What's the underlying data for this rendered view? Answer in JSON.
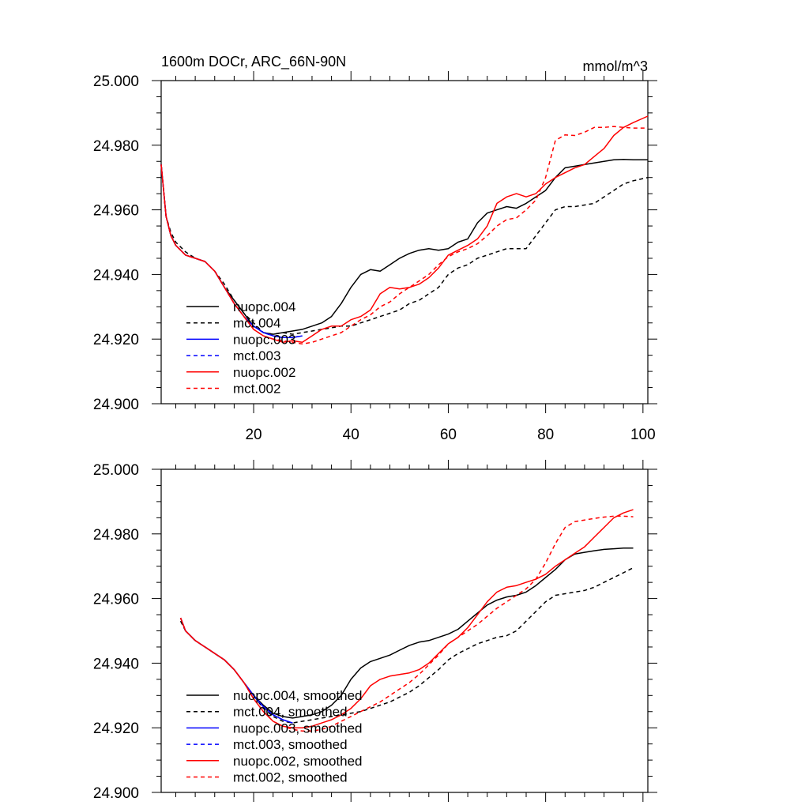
{
  "chart_data": [
    {
      "type": "line",
      "title": "1600m DOCr, ARC_66N-90N",
      "units": "mmol/m^3",
      "xlim": [
        1,
        101
      ],
      "ylim": [
        24.9,
        25.0
      ],
      "x_ticks": [
        20,
        40,
        60,
        80,
        100
      ],
      "y_ticks": [
        24.9,
        24.92,
        24.94,
        24.96,
        24.98,
        25.0
      ],
      "y_tick_labels": [
        "24.900",
        "24.920",
        "24.940",
        "24.960",
        "24.980",
        "25.000"
      ],
      "x_tick_labels": [
        "20",
        "40",
        "60",
        "80",
        "100"
      ],
      "legend_position": "lower-left",
      "series": [
        {
          "name": "nuopc.004",
          "color": "#000000",
          "dash": "solid",
          "x": [
            1,
            2,
            3,
            4,
            6,
            8,
            10,
            12,
            14,
            16,
            18,
            20,
            22,
            24,
            26,
            28,
            30,
            32,
            34,
            36,
            38,
            40,
            42,
            44,
            46,
            48,
            50,
            52,
            54,
            56,
            58,
            60,
            62,
            64,
            66,
            68,
            70,
            72,
            74,
            76,
            78,
            80,
            82,
            84,
            86,
            88,
            90,
            92,
            94,
            96,
            98,
            101
          ],
          "y": [
            24.974,
            24.958,
            24.952,
            24.949,
            24.946,
            24.945,
            24.944,
            24.941,
            24.936,
            24.932,
            24.928,
            24.924,
            24.922,
            24.9215,
            24.922,
            24.9225,
            24.923,
            24.924,
            24.925,
            24.927,
            24.931,
            24.936,
            24.94,
            24.9415,
            24.941,
            24.943,
            24.945,
            24.9465,
            24.9475,
            24.948,
            24.9475,
            24.948,
            24.95,
            24.951,
            24.956,
            24.959,
            24.96,
            24.961,
            24.9605,
            24.962,
            24.964,
            24.966,
            24.97,
            24.973,
            24.9735,
            24.974,
            24.9745,
            24.975,
            24.9755,
            24.9756,
            24.9755,
            24.9755
          ]
        },
        {
          "name": "mct.004",
          "color": "#000000",
          "dash": "dashed",
          "x": [
            1,
            2,
            3,
            4,
            6,
            8,
            10,
            12,
            14,
            16,
            18,
            20,
            22,
            24,
            26,
            28,
            30,
            32,
            34,
            36,
            38,
            40,
            42,
            44,
            46,
            48,
            50,
            52,
            54,
            56,
            58,
            60,
            62,
            64,
            66,
            68,
            70,
            72,
            74,
            76,
            78,
            80,
            82,
            84,
            86,
            88,
            90,
            92,
            94,
            96,
            98,
            101
          ],
          "y": [
            24.974,
            24.958,
            24.953,
            24.95,
            24.947,
            24.945,
            24.944,
            24.941,
            24.937,
            24.932,
            24.928,
            24.925,
            24.922,
            24.9215,
            24.922,
            24.9215,
            24.922,
            24.9225,
            24.923,
            24.9235,
            24.924,
            24.924,
            24.925,
            24.926,
            24.927,
            24.928,
            24.929,
            24.931,
            24.932,
            24.934,
            24.936,
            24.94,
            24.942,
            24.943,
            24.945,
            24.946,
            24.947,
            24.948,
            24.948,
            24.948,
            24.952,
            24.956,
            24.96,
            24.961,
            24.961,
            24.9615,
            24.962,
            24.964,
            24.966,
            24.968,
            24.969,
            24.97
          ]
        },
        {
          "name": "nuopc.003",
          "color": "#0000ff",
          "dash": "solid",
          "x": [
            1,
            2,
            3,
            4,
            6,
            8,
            10,
            12,
            14,
            16,
            18,
            20,
            22,
            24,
            26,
            28,
            30
          ],
          "y": [
            24.974,
            24.958,
            24.952,
            24.949,
            24.946,
            24.945,
            24.944,
            24.941,
            24.936,
            24.931,
            24.927,
            24.924,
            24.922,
            24.921,
            24.9205,
            24.9205,
            24.921
          ]
        },
        {
          "name": "mct.003",
          "color": "#0000ff",
          "dash": "dashed",
          "x": [
            1,
            2,
            3,
            4,
            6,
            8,
            10,
            12,
            14,
            16,
            18,
            20,
            22,
            24,
            26,
            28,
            30
          ],
          "y": [
            24.974,
            24.958,
            24.952,
            24.949,
            24.946,
            24.945,
            24.944,
            24.941,
            24.936,
            24.931,
            24.927,
            24.924,
            24.922,
            24.921,
            24.9205,
            24.9205,
            24.921
          ]
        },
        {
          "name": "nuopc.002",
          "color": "#ff0000",
          "dash": "solid",
          "x": [
            1,
            2,
            3,
            4,
            6,
            8,
            10,
            12,
            14,
            16,
            18,
            20,
            22,
            24,
            26,
            28,
            30,
            32,
            34,
            36,
            38,
            40,
            42,
            44,
            46,
            48,
            50,
            52,
            54,
            56,
            58,
            60,
            62,
            64,
            66,
            68,
            70,
            72,
            74,
            76,
            78,
            80,
            82,
            84,
            86,
            88,
            90,
            92,
            94,
            96,
            98,
            101
          ],
          "y": [
            24.974,
            24.958,
            24.952,
            24.949,
            24.946,
            24.945,
            24.944,
            24.941,
            24.936,
            24.931,
            24.927,
            24.923,
            24.921,
            24.92,
            24.919,
            24.9195,
            24.919,
            24.921,
            24.923,
            24.924,
            24.924,
            24.926,
            24.927,
            24.929,
            24.934,
            24.936,
            24.9355,
            24.936,
            24.937,
            24.939,
            24.942,
            24.946,
            24.9475,
            24.949,
            24.951,
            24.955,
            24.962,
            24.964,
            24.965,
            24.964,
            24.965,
            24.968,
            24.97,
            24.9715,
            24.973,
            24.974,
            24.9765,
            24.979,
            24.983,
            24.9855,
            24.987,
            24.989
          ]
        },
        {
          "name": "mct.002",
          "color": "#ff0000",
          "dash": "dashed",
          "x": [
            1,
            2,
            3,
            4,
            6,
            8,
            10,
            12,
            14,
            16,
            18,
            20,
            22,
            24,
            26,
            28,
            30,
            32,
            34,
            36,
            38,
            40,
            42,
            44,
            46,
            48,
            50,
            52,
            54,
            56,
            58,
            60,
            62,
            64,
            66,
            68,
            70,
            72,
            74,
            76,
            78,
            80,
            82,
            84,
            86,
            88,
            90,
            92,
            94,
            96,
            98,
            101
          ],
          "y": [
            24.974,
            24.958,
            24.952,
            24.949,
            24.946,
            24.945,
            24.944,
            24.941,
            24.936,
            24.931,
            24.927,
            24.923,
            24.921,
            24.92,
            24.9195,
            24.919,
            24.9185,
            24.919,
            24.92,
            24.921,
            24.922,
            24.924,
            24.926,
            24.9275,
            24.93,
            24.9315,
            24.934,
            24.936,
            24.938,
            24.94,
            24.943,
            24.9455,
            24.947,
            24.948,
            24.9495,
            24.952,
            24.955,
            24.957,
            24.9575,
            24.96,
            24.963,
            24.97,
            24.9815,
            24.9832,
            24.983,
            24.984,
            24.9855,
            24.9855,
            24.9858,
            24.9855,
            24.9853,
            24.9853
          ]
        }
      ]
    },
    {
      "type": "line",
      "xlim": [
        1,
        101
      ],
      "ylim": [
        24.9,
        25.0
      ],
      "x_ticks": [
        20,
        40,
        60,
        80,
        100
      ],
      "y_ticks": [
        24.9,
        24.92,
        24.94,
        24.96,
        24.98,
        25.0
      ],
      "y_tick_labels": [
        "24.900",
        "24.920",
        "24.940",
        "24.960",
        "24.980",
        "25.000"
      ],
      "legend_position": "lower-left",
      "series": [
        {
          "name": "nuopc.004, smoothed",
          "color": "#000000",
          "dash": "solid",
          "x": [
            5,
            6,
            8,
            10,
            12,
            14,
            16,
            18,
            20,
            22,
            24,
            26,
            28,
            30,
            32,
            34,
            36,
            38,
            40,
            42,
            44,
            46,
            48,
            50,
            52,
            54,
            56,
            58,
            60,
            62,
            64,
            66,
            68,
            70,
            72,
            74,
            76,
            78,
            80,
            82,
            84,
            86,
            88,
            90,
            92,
            94,
            96,
            98
          ],
          "y": [
            24.954,
            24.95,
            24.947,
            24.945,
            24.943,
            24.941,
            24.938,
            24.934,
            24.93,
            24.927,
            24.9245,
            24.9235,
            24.923,
            24.9235,
            24.924,
            24.925,
            24.927,
            24.93,
            24.935,
            24.9385,
            24.9405,
            24.9415,
            24.9425,
            24.944,
            24.9455,
            24.9465,
            24.947,
            24.948,
            24.949,
            24.9505,
            24.953,
            24.9555,
            24.958,
            24.9595,
            24.9605,
            24.961,
            24.962,
            24.964,
            24.9665,
            24.969,
            24.972,
            24.9738,
            24.9743,
            24.9748,
            24.9752,
            24.9754,
            24.9756,
            24.9756
          ]
        },
        {
          "name": "mct.004, smoothed",
          "color": "#000000",
          "dash": "dashed",
          "x": [
            5,
            6,
            8,
            10,
            12,
            14,
            16,
            18,
            20,
            22,
            24,
            26,
            28,
            30,
            32,
            34,
            36,
            38,
            40,
            42,
            44,
            46,
            48,
            50,
            52,
            54,
            56,
            58,
            60,
            62,
            64,
            66,
            68,
            70,
            72,
            74,
            76,
            78,
            80,
            82,
            84,
            86,
            88,
            90,
            92,
            94,
            96,
            98
          ],
          "y": [
            24.953,
            24.95,
            24.947,
            24.945,
            24.943,
            24.941,
            24.938,
            24.934,
            24.93,
            24.926,
            24.9235,
            24.922,
            24.9215,
            24.922,
            24.9225,
            24.923,
            24.9235,
            24.924,
            24.9245,
            24.925,
            24.926,
            24.927,
            24.928,
            24.9295,
            24.931,
            24.933,
            24.9355,
            24.938,
            24.941,
            24.943,
            24.9445,
            24.946,
            24.947,
            24.948,
            24.9485,
            24.95,
            24.953,
            24.956,
            24.959,
            24.961,
            24.9615,
            24.962,
            24.9625,
            24.9635,
            24.965,
            24.9665,
            24.968,
            24.9695
          ]
        },
        {
          "name": "nuopc.003, smoothed",
          "color": "#0000ff",
          "dash": "solid",
          "x": [
            5,
            6,
            8,
            10,
            12,
            14,
            16,
            18,
            20,
            22,
            24,
            26,
            28
          ],
          "y": [
            24.954,
            24.95,
            24.947,
            24.945,
            24.943,
            24.941,
            24.938,
            24.934,
            24.93,
            24.9265,
            24.924,
            24.9225,
            24.9215
          ]
        },
        {
          "name": "mct.003, smoothed",
          "color": "#0000ff",
          "dash": "dashed",
          "x": [
            5,
            6,
            8,
            10,
            12,
            14,
            16,
            18,
            20,
            22,
            24,
            26,
            28
          ],
          "y": [
            24.954,
            24.95,
            24.947,
            24.945,
            24.943,
            24.941,
            24.938,
            24.934,
            24.93,
            24.9265,
            24.924,
            24.9225,
            24.9215
          ]
        },
        {
          "name": "nuopc.002, smoothed",
          "color": "#ff0000",
          "dash": "solid",
          "x": [
            5,
            6,
            8,
            10,
            12,
            14,
            16,
            18,
            20,
            22,
            24,
            26,
            28,
            30,
            32,
            34,
            36,
            38,
            40,
            42,
            44,
            46,
            48,
            50,
            52,
            54,
            56,
            58,
            60,
            62,
            64,
            66,
            68,
            70,
            72,
            74,
            76,
            78,
            80,
            82,
            84,
            86,
            88,
            90,
            92,
            94,
            96,
            98
          ],
          "y": [
            24.954,
            24.95,
            24.947,
            24.945,
            24.943,
            24.941,
            24.938,
            24.934,
            24.929,
            24.925,
            24.922,
            24.9205,
            24.92,
            24.92,
            24.9205,
            24.9215,
            24.9225,
            24.924,
            24.926,
            24.929,
            24.933,
            24.935,
            24.936,
            24.9365,
            24.937,
            24.938,
            24.94,
            24.943,
            24.946,
            24.948,
            24.951,
            24.955,
            24.959,
            24.962,
            24.9635,
            24.964,
            24.965,
            24.966,
            24.9675,
            24.97,
            24.972,
            24.974,
            24.976,
            24.979,
            24.982,
            24.985,
            24.9865,
            24.9875
          ]
        },
        {
          "name": "mct.002, smoothed",
          "color": "#ff0000",
          "dash": "dashed",
          "x": [
            5,
            6,
            8,
            10,
            12,
            14,
            16,
            18,
            20,
            22,
            24,
            26,
            28,
            30,
            32,
            34,
            36,
            38,
            40,
            42,
            44,
            46,
            48,
            50,
            52,
            54,
            56,
            58,
            60,
            62,
            64,
            66,
            68,
            70,
            72,
            74,
            76,
            78,
            80,
            82,
            84,
            86,
            88,
            90,
            92,
            94,
            96,
            98
          ],
          "y": [
            24.954,
            24.95,
            24.947,
            24.945,
            24.943,
            24.941,
            24.938,
            24.934,
            24.929,
            24.925,
            24.922,
            24.9205,
            24.9195,
            24.919,
            24.919,
            24.9195,
            24.9205,
            24.922,
            24.9235,
            24.925,
            24.9265,
            24.928,
            24.93,
            24.932,
            24.934,
            24.9365,
            24.9395,
            24.9425,
            24.946,
            24.948,
            24.95,
            24.952,
            24.9545,
            24.957,
            24.959,
            24.961,
            24.963,
            24.966,
            24.971,
            24.977,
            24.982,
            24.9838,
            24.9843,
            24.9848,
            24.9852,
            24.9855,
            24.9855,
            24.9853
          ]
        }
      ]
    }
  ]
}
